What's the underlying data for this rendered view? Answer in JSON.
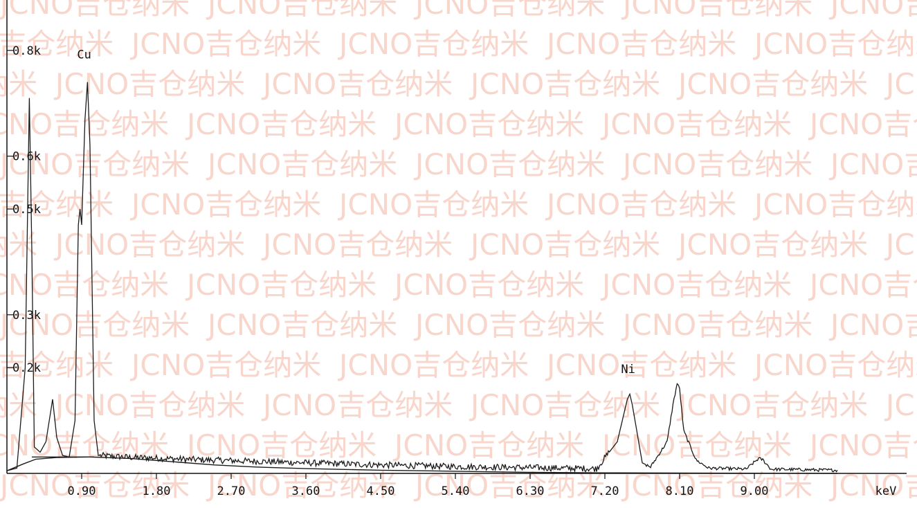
{
  "watermark": "JCNO吉仓纳米",
  "chart_data": {
    "type": "line",
    "title": "",
    "xlabel": "keV",
    "ylabel": "",
    "xlim": [
      0.0,
      12.8
    ],
    "ylim": [
      0.0,
      0.8
    ],
    "x_ticks": [
      0.9,
      1.8,
      2.7,
      3.6,
      4.5,
      5.4,
      6.3,
      7.2,
      8.1,
      9.0
    ],
    "x_tick_labels": [
      "0.90",
      "1.80",
      "2.70",
      "3.60",
      "4.50",
      "5.40",
      "6.30",
      "7.20",
      "8.10",
      "9.00"
    ],
    "y_ticks": [
      0.2,
      0.3,
      0.5,
      0.6,
      0.8
    ],
    "y_tick_labels": [
      "0.2k",
      "0.3k",
      "0.5k",
      "0.6k",
      "0.8k"
    ],
    "annotations": [
      {
        "text": "Cu",
        "x": 0.93,
        "y": 0.785
      },
      {
        "text": "Ni",
        "x": 7.48,
        "y": 0.19
      }
    ],
    "series": [
      {
        "points": [
          [
            0.0,
            0.005
          ],
          [
            0.12,
            0.01
          ],
          [
            0.22,
            0.2
          ],
          [
            0.27,
            0.71
          ],
          [
            0.3,
            0.42
          ],
          [
            0.33,
            0.05
          ],
          [
            0.4,
            0.04
          ],
          [
            0.47,
            0.06
          ],
          [
            0.55,
            0.14
          ],
          [
            0.6,
            0.068
          ],
          [
            0.67,
            0.034
          ],
          [
            0.75,
            0.031
          ],
          [
            0.82,
            0.1
          ],
          [
            0.86,
            0.47
          ],
          [
            0.88,
            0.5
          ],
          [
            0.9,
            0.47
          ],
          [
            0.94,
            0.67
          ],
          [
            0.97,
            0.74
          ],
          [
            1.0,
            0.62
          ],
          [
            1.05,
            0.1
          ],
          [
            1.1,
            0.034
          ],
          [
            1.3,
            0.032
          ],
          [
            1.55,
            0.03
          ],
          [
            1.8,
            0.029
          ],
          [
            2.1,
            0.027
          ],
          [
            2.5,
            0.025
          ],
          [
            3.0,
            0.023
          ],
          [
            3.6,
            0.02
          ],
          [
            4.5,
            0.016
          ],
          [
            5.4,
            0.013
          ],
          [
            6.3,
            0.011
          ],
          [
            7.1,
            0.009
          ],
          [
            7.35,
            0.06
          ],
          [
            7.47,
            0.14
          ],
          [
            7.5,
            0.15
          ],
          [
            7.53,
            0.13
          ],
          [
            7.65,
            0.02
          ],
          [
            7.75,
            0.012
          ],
          [
            7.95,
            0.06
          ],
          [
            8.02,
            0.13
          ],
          [
            8.07,
            0.17
          ],
          [
            8.1,
            0.16
          ],
          [
            8.15,
            0.08
          ],
          [
            8.3,
            0.025
          ],
          [
            8.45,
            0.01
          ],
          [
            8.9,
            0.008
          ],
          [
            9.05,
            0.028
          ],
          [
            9.1,
            0.026
          ],
          [
            9.2,
            0.008
          ],
          [
            10.0,
            0.006
          ]
        ]
      },
      {
        "points": [
          [
            0.0,
            0.005
          ],
          [
            0.2,
            0.018
          ],
          [
            0.35,
            0.027
          ],
          [
            0.6,
            0.03
          ],
          [
            1.0,
            0.031
          ],
          [
            1.5,
            0.028
          ],
          [
            2.0,
            0.022
          ],
          [
            2.5,
            0.016
          ],
          [
            3.0,
            0.012
          ],
          [
            3.6,
            0.009
          ],
          [
            4.5,
            0.006
          ],
          [
            5.4,
            0.004
          ],
          [
            6.3,
            0.002
          ],
          [
            7.2,
            0.001
          ],
          [
            10.0,
            0.0
          ]
        ]
      },
      {
        "points": [
          [
            0.3,
            0.031
          ],
          [
            1.05,
            0.031
          ]
        ]
      }
    ],
    "grid": false,
    "legend": "none"
  }
}
